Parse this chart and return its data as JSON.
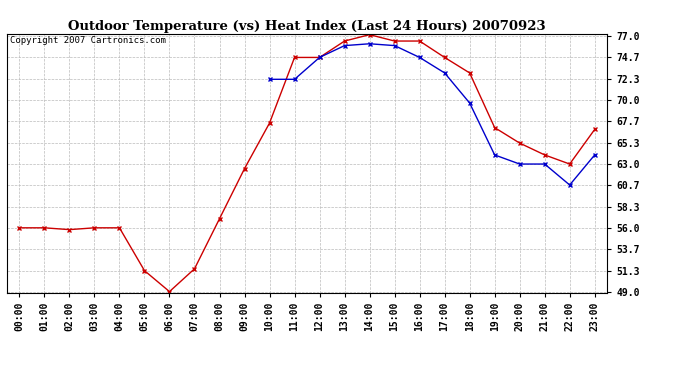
{
  "title": "Outdoor Temperature (vs) Heat Index (Last 24 Hours) 20070923",
  "copyright_text": "Copyright 2007 Cartronics.com",
  "hours": [
    "00:00",
    "01:00",
    "02:00",
    "03:00",
    "04:00",
    "05:00",
    "06:00",
    "07:00",
    "08:00",
    "09:00",
    "10:00",
    "11:00",
    "12:00",
    "13:00",
    "14:00",
    "15:00",
    "16:00",
    "17:00",
    "18:00",
    "19:00",
    "20:00",
    "21:00",
    "22:00",
    "23:00"
  ],
  "red_data": [
    56.0,
    56.0,
    55.8,
    56.0,
    56.0,
    51.3,
    49.0,
    51.5,
    57.0,
    62.5,
    67.5,
    74.7,
    74.7,
    76.5,
    77.2,
    76.5,
    76.5,
    74.7,
    73.0,
    67.0,
    65.3,
    64.0,
    63.0,
    66.8
  ],
  "blue_data": [
    null,
    null,
    null,
    null,
    null,
    null,
    null,
    null,
    null,
    null,
    72.3,
    72.3,
    74.7,
    76.0,
    76.2,
    76.0,
    74.7,
    73.0,
    69.7,
    64.0,
    63.0,
    63.0,
    60.7,
    64.0
  ],
  "ylim_min": 49.0,
  "ylim_max": 77.0,
  "yticks": [
    49.0,
    51.3,
    53.7,
    56.0,
    58.3,
    60.7,
    63.0,
    65.3,
    67.7,
    70.0,
    72.3,
    74.7,
    77.0
  ],
  "red_color": "#cc0000",
  "blue_color": "#0000cc",
  "background_color": "#ffffff",
  "grid_color": "#bbbbbb",
  "title_fontsize": 9.5,
  "tick_fontsize": 7.0,
  "copyright_fontsize": 6.5,
  "marker": "x",
  "marker_size": 3.5,
  "marker_linewidth": 1.0,
  "line_width": 1.0
}
